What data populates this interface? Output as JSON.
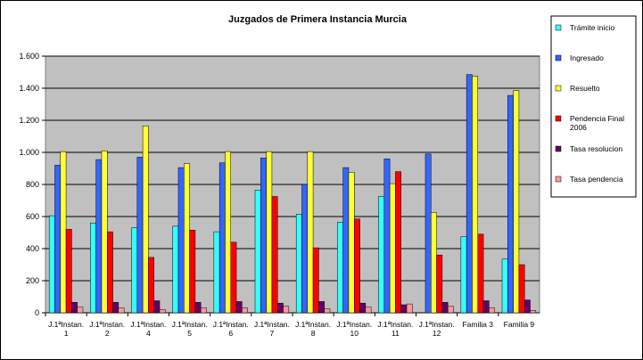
{
  "chart_data": {
    "type": "bar",
    "title": "Juzgados de Primera Instancia Murcia",
    "categories": [
      "J.1ªInstan. 1",
      "J.1ªInstan. 2",
      "J.1ªInstan. 4",
      "J.1ªInstan. 5",
      "J.1ªInstan. 6",
      "J.1ªInstan. 7",
      "J.1ªInstan. 8",
      "J.1ªInstan. 10",
      "J.1ªInstan. 11",
      "J.1ªInstan. 12",
      "Familia 3",
      "Familia 9"
    ],
    "series": [
      {
        "name": "Trámite inicio",
        "color": "#33ffff",
        "values": [
          605,
          560,
          530,
          540,
          505,
          765,
          615,
          565,
          725,
          null,
          475,
          335
        ]
      },
      {
        "name": "Ingresado",
        "color": "#3366ff",
        "values": [
          920,
          955,
          970,
          905,
          935,
          965,
          800,
          905,
          960,
          990,
          1485,
          1355
        ]
      },
      {
        "name": "Resuelto",
        "color": "#ffff33",
        "values": [
          1005,
          1010,
          1165,
          930,
          1005,
          1005,
          1005,
          875,
          805,
          625,
          1475,
          1385
        ]
      },
      {
        "name": "Pendencia Final 2006",
        "color": "#ff0000",
        "values": [
          520,
          505,
          345,
          515,
          440,
          725,
          405,
          585,
          880,
          360,
          490,
          300
        ]
      },
      {
        "name": "Tasa resolucion",
        "color": "#660066",
        "values": [
          65,
          65,
          75,
          65,
          70,
          60,
          70,
          60,
          50,
          65,
          75,
          80
        ]
      },
      {
        "name": "Tasa pendencia",
        "color": "#ff9999",
        "values": [
          35,
          30,
          20,
          30,
          30,
          40,
          25,
          35,
          55,
          40,
          30,
          15
        ]
      }
    ],
    "ylim": [
      0,
      1600
    ],
    "yticks": [
      0,
      200,
      400,
      600,
      800,
      {
        "value": 1000,
        "label": "1.000"
      },
      {
        "value": 1200,
        "label": "1.200"
      },
      {
        "value": 1400,
        "label": "1.400"
      },
      {
        "value": 1600,
        "label": "1.600"
      }
    ],
    "grid": true,
    "legend": "right"
  }
}
